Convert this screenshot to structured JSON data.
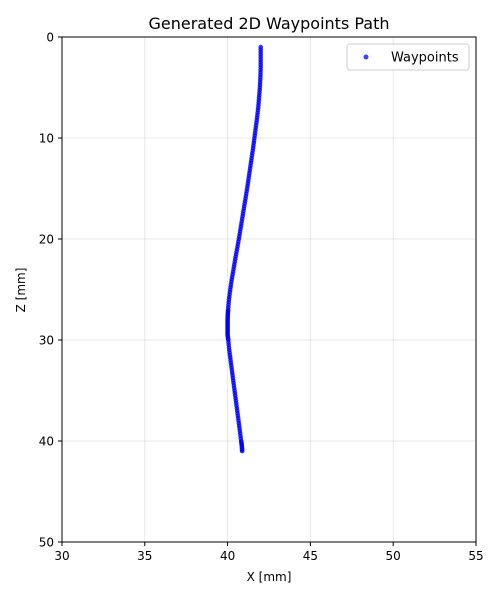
{
  "chart_data": {
    "type": "scatter",
    "title": "Generated 2D Waypoints Path",
    "xlabel": "X [mm]",
    "ylabel": "Z [mm]",
    "xlim": [
      30,
      55
    ],
    "ylim": [
      50,
      0
    ],
    "y_inverted": true,
    "xticks": [
      30,
      35,
      40,
      45,
      50,
      55
    ],
    "yticks": [
      0,
      10,
      20,
      30,
      40,
      50
    ],
    "grid": true,
    "legend_position": "top-right",
    "series": [
      {
        "name": "Waypoints",
        "color": "#0000ff",
        "x": [
          42.0,
          42.0,
          42.0,
          41.98,
          41.95,
          41.9,
          41.85,
          41.78,
          41.7,
          41.62,
          41.54,
          41.45,
          41.36,
          41.27,
          41.18,
          41.08,
          40.98,
          40.88,
          40.78,
          40.68,
          40.57,
          40.46,
          40.36,
          40.25,
          40.16,
          40.08,
          40.03,
          40.01,
          40.0,
          40.0,
          40.0,
          40.0,
          40.04,
          40.1,
          40.18,
          40.26,
          40.34,
          40.42,
          40.5,
          40.58,
          40.66,
          40.74,
          40.82,
          40.86,
          40.88
        ],
        "y": [
          1.0,
          2.0,
          3.0,
          4.0,
          5.0,
          6.0,
          7.0,
          8.0,
          9.0,
          10.0,
          11.0,
          12.0,
          13.0,
          14.0,
          15.0,
          16.0,
          17.0,
          18.0,
          19.0,
          20.0,
          21.0,
          22.0,
          23.0,
          24.0,
          25.0,
          26.0,
          27.0,
          27.5,
          28.0,
          28.5,
          29.0,
          29.5,
          30.0,
          31.0,
          32.0,
          33.0,
          34.0,
          35.0,
          36.0,
          37.0,
          38.0,
          39.0,
          40.0,
          40.5,
          41.0
        ]
      }
    ]
  }
}
